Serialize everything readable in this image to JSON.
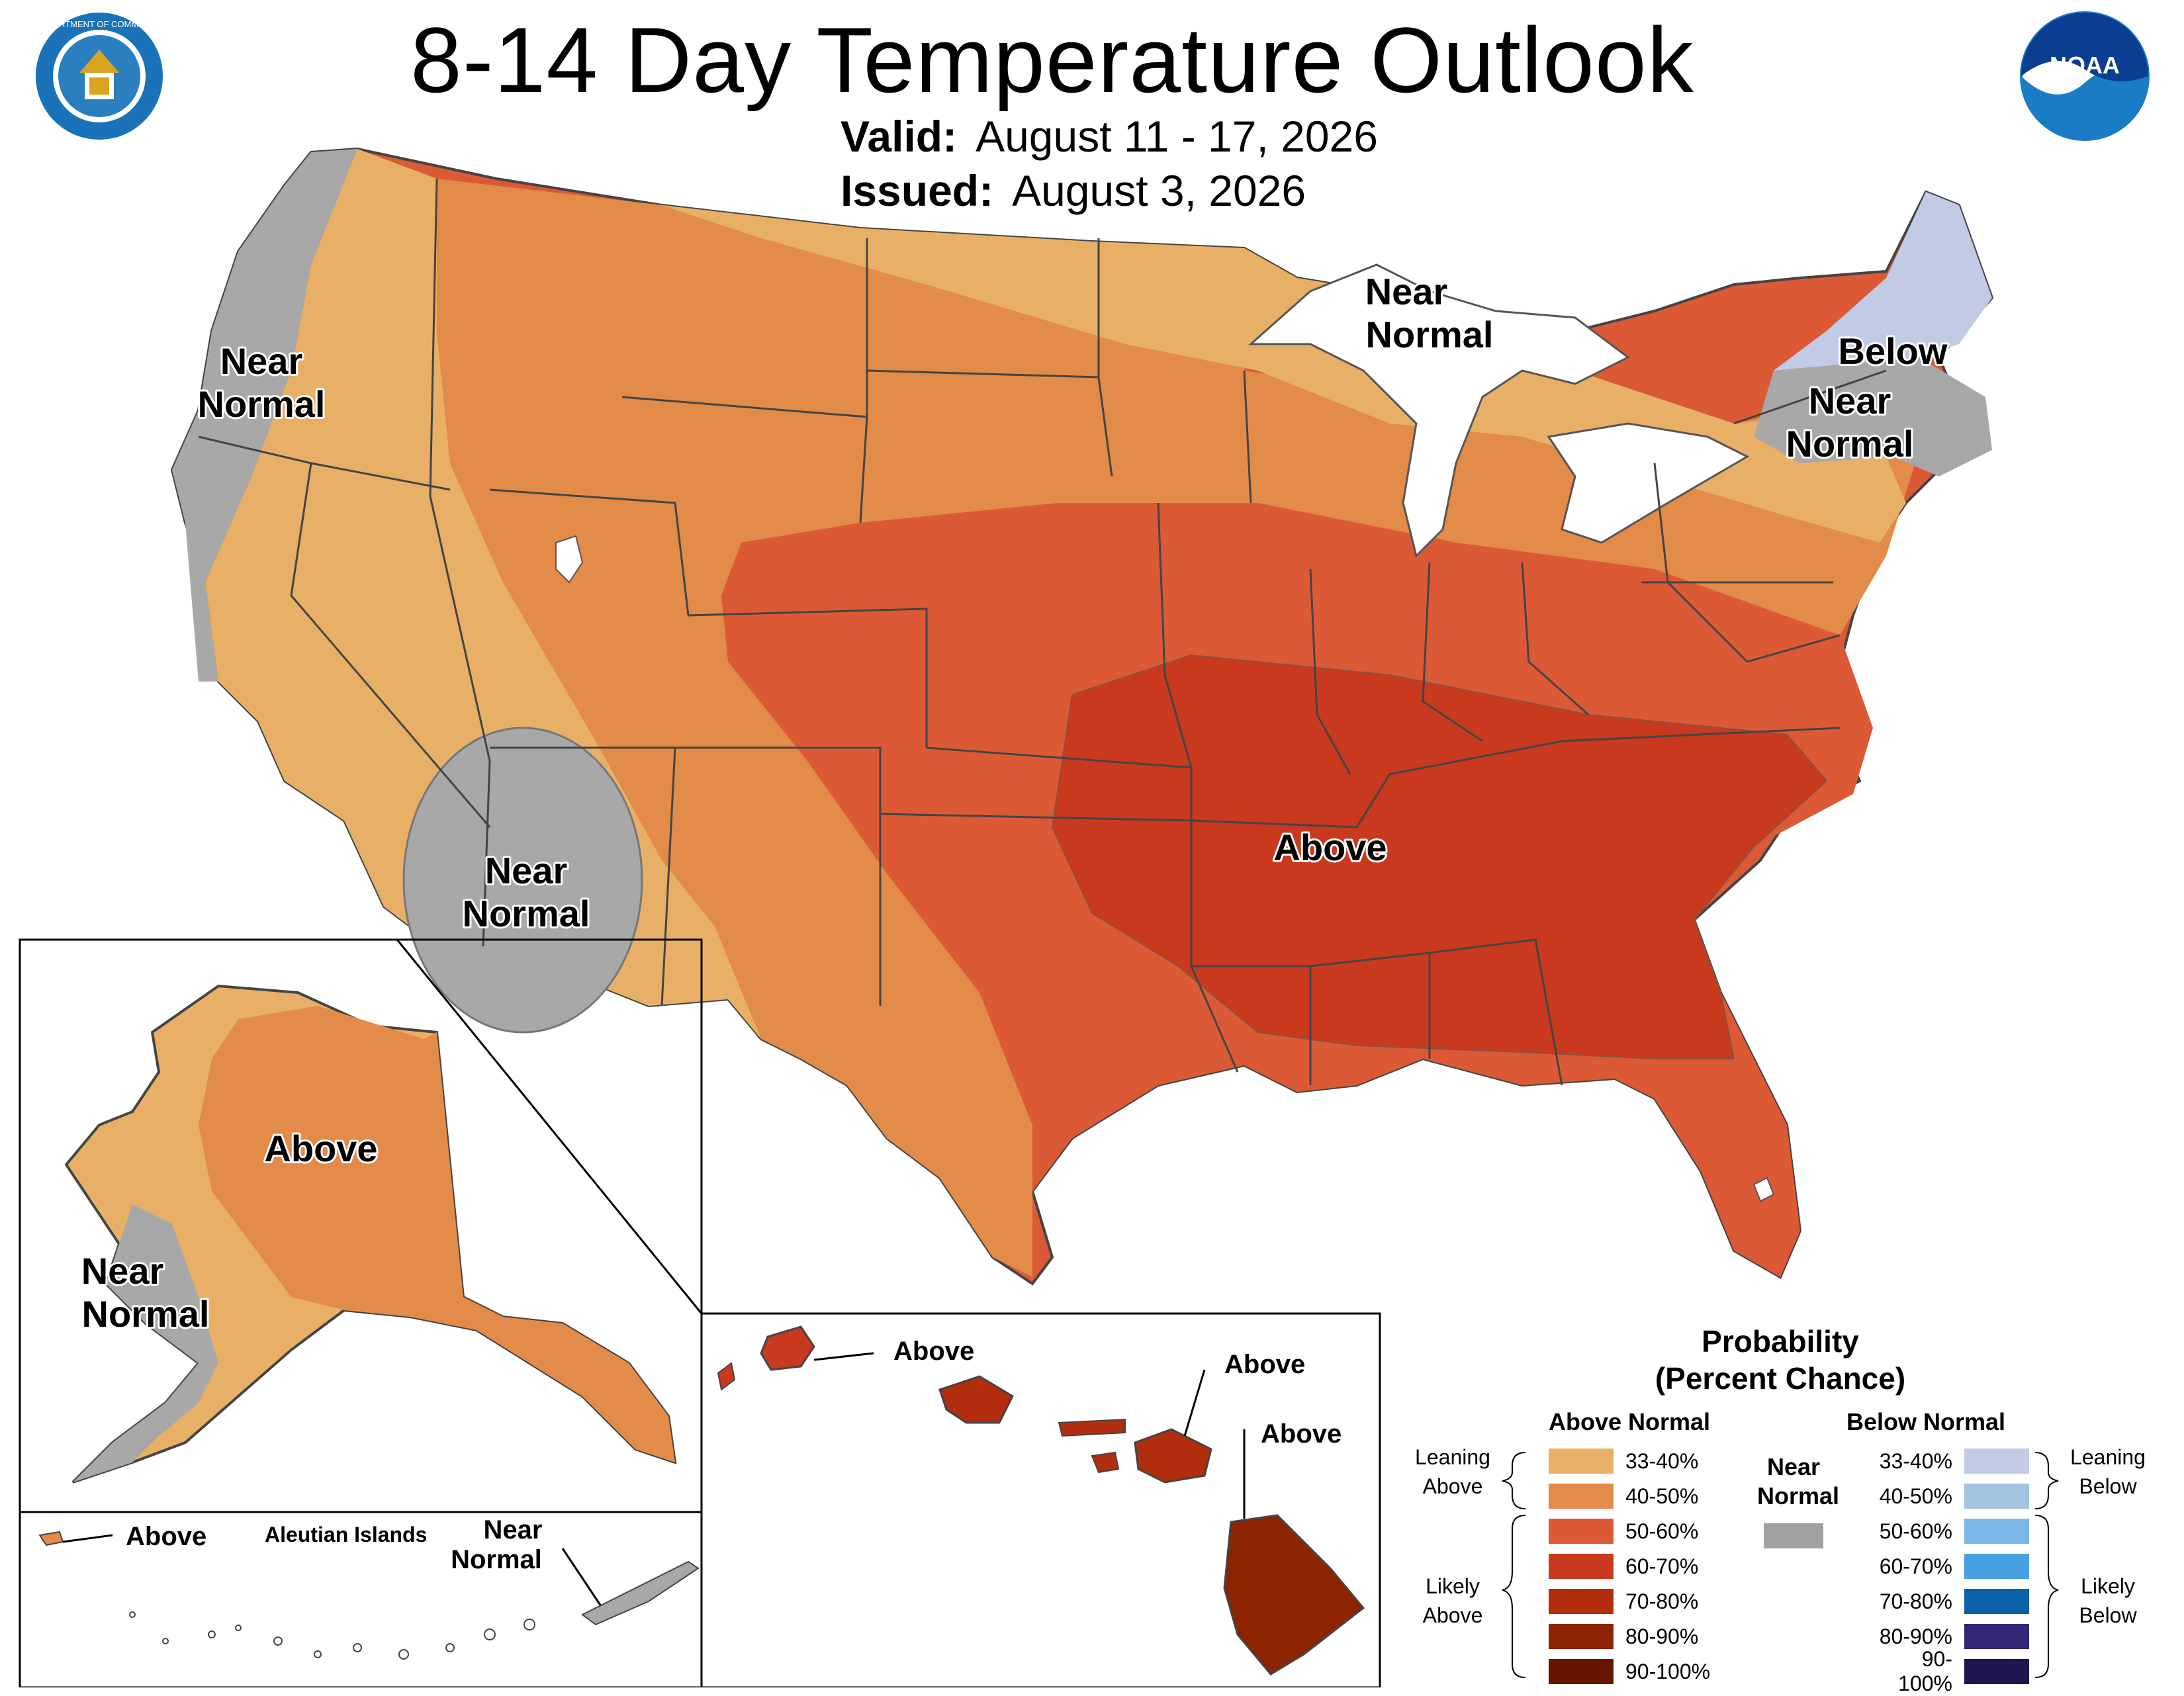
{
  "header": {
    "title": "8-14 Day Temperature Outlook",
    "valid_label": "Valid:",
    "valid_value": "August 11 - 17, 2026",
    "issued_label": "Issued:",
    "issued_value": "August 3, 2026"
  },
  "logos": {
    "left": {
      "icon": "department-of-commerce-seal-icon",
      "text": "DEPARTMENT OF COMMERCE • UNITED STATES OF AMERICA"
    },
    "right": {
      "icon": "noaa-logo-icon",
      "text": "NOAA"
    }
  },
  "map_labels": {
    "west_coast": [
      "Near",
      "Normal"
    ],
    "great_lakes": [
      "Near",
      "Normal"
    ],
    "new_england_below": "Below",
    "northeast": [
      "Near",
      "Normal"
    ],
    "southwest": [
      "Near",
      "Normal"
    ],
    "central": "Above",
    "alaska_above": "Above",
    "alaska_near": [
      "Near",
      "Normal"
    ],
    "aleutian_above": "Above",
    "aleutian_title": "Aleutian Islands",
    "aleutian_near": [
      "Near",
      "Normal"
    ],
    "hawaii_kauai": "Above",
    "hawaii_maui": "Above",
    "hawaii_big_island": "Above"
  },
  "legend": {
    "title_line1": "Probability",
    "title_line2": "(Percent Chance)",
    "above_header": "Above Normal",
    "below_header": "Below Normal",
    "near_header": [
      "Near",
      "Normal"
    ],
    "near_color": "#a0a0a0",
    "leaning_above": [
      "Leaning",
      "Above"
    ],
    "likely_above": [
      "Likely",
      "Above"
    ],
    "leaning_below": [
      "Leaning",
      "Below"
    ],
    "likely_below": [
      "Likely",
      "Below"
    ],
    "above": [
      {
        "range": "33-40%",
        "color": "#e8b066"
      },
      {
        "range": "40-50%",
        "color": "#e38b48"
      },
      {
        "range": "50-60%",
        "color": "#db5a35"
      },
      {
        "range": "60-70%",
        "color": "#c9391e"
      },
      {
        "range": "70-80%",
        "color": "#b22d0e"
      },
      {
        "range": "80-90%",
        "color": "#8d2300"
      },
      {
        "range": "90-100%",
        "color": "#681500"
      }
    ],
    "below": [
      {
        "range": "33-40%",
        "color": "#c2cbe6"
      },
      {
        "range": "40-50%",
        "color": "#a3c3e3"
      },
      {
        "range": "50-60%",
        "color": "#7bb7e6"
      },
      {
        "range": "60-70%",
        "color": "#47a0e0"
      },
      {
        "range": "70-80%",
        "color": "#0d61a8"
      },
      {
        "range": "80-90%",
        "color": "#332675"
      },
      {
        "range": "90-100%",
        "color": "#1f1650"
      }
    ]
  }
}
